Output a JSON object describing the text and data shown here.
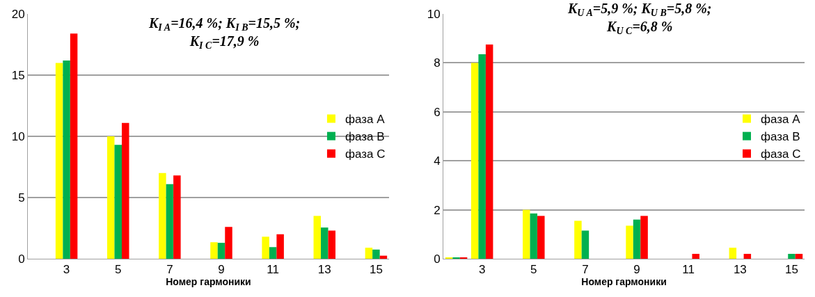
{
  "chart_data": [
    {
      "type": "bar",
      "title": "K$_{I A}$=16,4 %; K$_{I B}$=15,5 %;\nK$_{I C}$=17,9 %",
      "xlabel": "Номер гармоники",
      "categories": [
        null,
        "3",
        null,
        "5",
        null,
        "7",
        null,
        "9",
        null,
        "11",
        null,
        "13",
        null,
        "15"
      ],
      "series": [
        {
          "name": "фаза A",
          "color": "#ffff00",
          "values": [
            0,
            16.0,
            0,
            10.0,
            0,
            7.0,
            0,
            1.35,
            0,
            1.8,
            0,
            3.5,
            0,
            0.9
          ]
        },
        {
          "name": "фаза B",
          "color": "#00b050",
          "values": [
            0,
            16.2,
            0,
            9.3,
            0,
            6.1,
            0,
            1.3,
            0,
            0.95,
            0,
            2.55,
            0,
            0.75
          ]
        },
        {
          "name": "фаза C",
          "color": "#ff0000",
          "values": [
            0,
            18.4,
            0,
            11.1,
            0,
            6.8,
            0,
            2.6,
            0,
            2.0,
            0,
            2.3,
            0,
            0.25
          ]
        }
      ],
      "ylim": [
        0,
        20
      ],
      "yticks": [
        0,
        5,
        10,
        15,
        20
      ],
      "grid": "y",
      "legend": "right"
    },
    {
      "type": "bar",
      "title": "K$_{U A}$=5,9 %; K$_{U B}$=5,8 %;\nK$_{U C}$=6,8 %",
      "xlabel": "Номер гармоники",
      "categories": [
        null,
        "3",
        null,
        "5",
        null,
        "7",
        null,
        "9",
        null,
        "11",
        null,
        "13",
        null,
        "15"
      ],
      "series": [
        {
          "name": "фаза A",
          "color": "#ffff00",
          "values": [
            0.03,
            8.0,
            0,
            2.0,
            0,
            1.55,
            0,
            1.35,
            0,
            0,
            0,
            0.45,
            0,
            0
          ]
        },
        {
          "name": "фаза B",
          "color": "#00b050",
          "values": [
            0.04,
            8.35,
            0,
            1.85,
            0,
            1.15,
            0,
            1.6,
            0,
            0,
            0,
            0,
            0,
            0.2
          ]
        },
        {
          "name": "фаза C",
          "color": "#ff0000",
          "values": [
            0.04,
            8.75,
            0,
            1.75,
            0,
            0,
            0,
            1.75,
            0,
            0.2,
            0,
            0.2,
            0,
            0.2
          ]
        }
      ],
      "ylim": [
        0,
        10
      ],
      "yticks": [
        0,
        2,
        4,
        6,
        8,
        10
      ],
      "grid": "y",
      "legend": "right"
    }
  ]
}
